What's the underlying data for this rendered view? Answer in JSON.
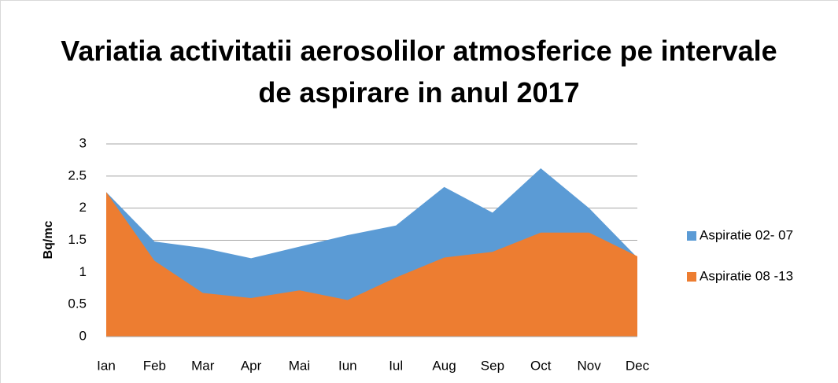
{
  "chart_data": {
    "type": "area",
    "title": "Variatia activitatii aerosolilor atmosferice pe intervale de aspirare in anul 2017",
    "y_label": "Bq/mc",
    "categories": [
      "Ian",
      "Feb",
      "Mar",
      "Apr",
      "Mai",
      "Iun",
      "Iul",
      "Aug",
      "Sep",
      "Oct",
      "Nov",
      "Dec"
    ],
    "series": [
      {
        "name": "Aspiratie 02- 07",
        "color": "#5b9bd5",
        "values": [
          2.25,
          1.48,
          1.38,
          1.22,
          1.4,
          1.58,
          1.73,
          2.33,
          1.93,
          2.62,
          2.0,
          1.23
        ]
      },
      {
        "name": "Aspiratie 08 -13",
        "color": "#ed7d31",
        "values": [
          2.25,
          1.18,
          0.68,
          0.6,
          0.72,
          0.57,
          0.92,
          1.23,
          1.32,
          1.62,
          1.62,
          1.25
        ]
      }
    ],
    "ylim": [
      0,
      3
    ],
    "yticks": [
      0,
      0.5,
      1,
      1.5,
      2,
      2.5,
      3
    ],
    "grid": true,
    "legend": "right"
  }
}
